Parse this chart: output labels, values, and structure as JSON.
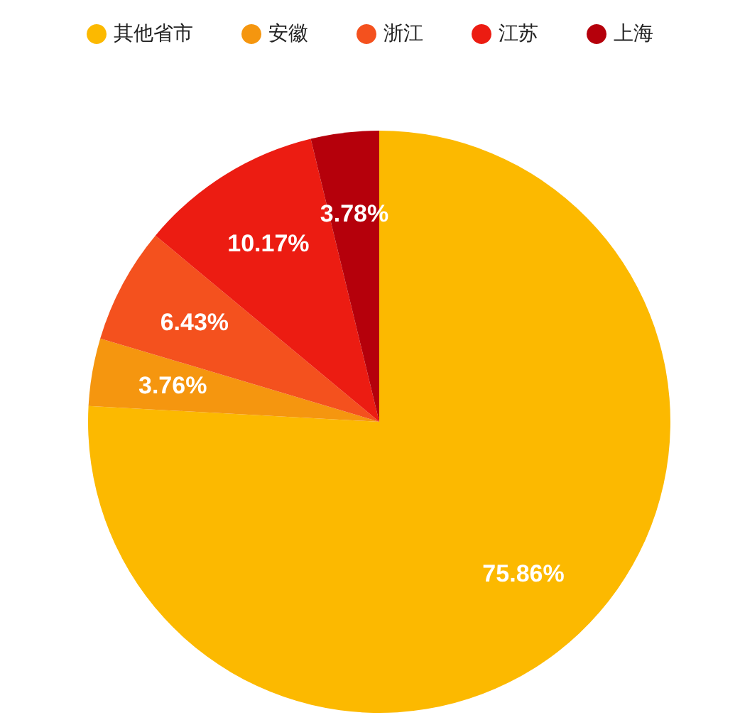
{
  "chart_data": {
    "type": "pie",
    "categories": [
      "其他省市",
      "安徽",
      "浙江",
      "江苏",
      "上海"
    ],
    "values": [
      75.86,
      3.76,
      6.43,
      10.17,
      3.78
    ],
    "value_labels": [
      "75.86%",
      "3.76%",
      "6.43%",
      "10.17%",
      "3.78%"
    ],
    "colors": [
      "#fcb900",
      "#f5960f",
      "#f4511e",
      "#ec1c12",
      "#b5000b"
    ],
    "legend": "top"
  }
}
